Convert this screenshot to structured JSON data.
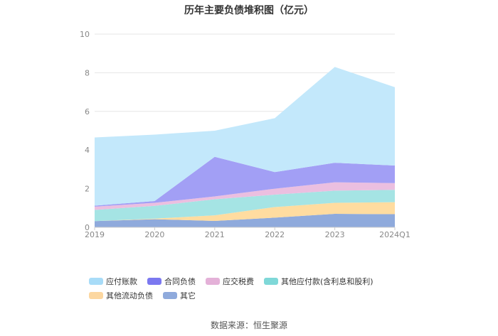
{
  "chart_data": {
    "type": "area",
    "stacked": true,
    "title": "历年主要负债堆积图（亿元）",
    "categories": [
      "2019",
      "2020",
      "2021",
      "2022",
      "2023",
      "2024Q1"
    ],
    "ylim": [
      0,
      10
    ],
    "yticks": [
      "0",
      "2",
      "4",
      "6",
      "8",
      "10"
    ],
    "grid": true,
    "legend_position": "bottom-left",
    "series": [
      {
        "name": "其它",
        "color": "#8faadc",
        "values": [
          0.32,
          0.42,
          0.33,
          0.5,
          0.7,
          0.68
        ]
      },
      {
        "name": "其他流动负债",
        "color": "#ffdca0",
        "values": [
          0.0,
          0.03,
          0.29,
          0.55,
          0.57,
          0.62
        ]
      },
      {
        "name": "其他应付款(含利息和股利)",
        "color": "#a5e4e4",
        "values": [
          0.58,
          0.66,
          0.83,
          0.64,
          0.63,
          0.64
        ]
      },
      {
        "name": "应交税费",
        "color": "#ebbfe0",
        "values": [
          0.17,
          0.16,
          0.15,
          0.31,
          0.43,
          0.35
        ]
      },
      {
        "name": "合同负债",
        "color": "#a29ff5",
        "values": [
          0.05,
          0.09,
          2.05,
          0.86,
          1.01,
          0.91
        ]
      },
      {
        "name": "应付账款",
        "color": "#c3e8fb",
        "values": [
          3.53,
          3.44,
          1.35,
          2.79,
          4.96,
          4.05
        ]
      }
    ],
    "legend_order": [
      "应付账款",
      "合同负债",
      "应交税费",
      "其他应付款(含利息和股利)",
      "其他流动负债",
      "其它"
    ],
    "legend_colors": [
      "#a8dcf8",
      "#7b78f0",
      "#e4b1d8",
      "#7fd8d8",
      "#fcd7a0",
      "#8faadc"
    ]
  },
  "source": "数据来源：恒生聚源"
}
